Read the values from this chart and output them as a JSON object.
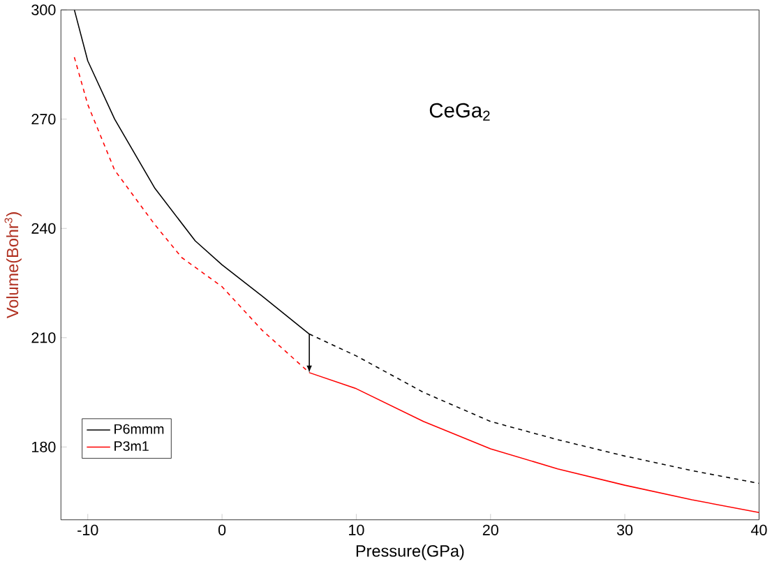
{
  "chart_data": {
    "type": "line",
    "xlabel": "Pressure(GPa)",
    "ylabel": "Volume(Bohr$^{3}$)",
    "annotations": [
      "CeGa$_{2}$"
    ],
    "xlim": [
      -12,
      40
    ],
    "ylim": [
      160,
      300
    ],
    "xticks": [
      -10,
      0,
      10,
      20,
      30,
      40
    ],
    "yticks": [
      180,
      210,
      240,
      270,
      300
    ],
    "grid": false,
    "legend": "bottom left",
    "marker": "none",
    "series": [
      {
        "name": "P6mmm",
        "color": "#000000",
        "line_style": "solid",
        "x": [
          -11,
          -10,
          -8,
          -5,
          -2,
          0,
          3,
          6.5
        ],
        "values": [
          300,
          286,
          270,
          251,
          236.6,
          230,
          221.4,
          211
        ]
      },
      {
        "name": "P3m1",
        "color": "#ff0000",
        "line_style": "solid",
        "x": [
          6.5,
          10,
          15,
          20,
          25,
          30,
          35,
          40
        ],
        "values": [
          200.4,
          196,
          187,
          179.5,
          174,
          169.5,
          165.5,
          162
        ]
      },
      {
        "color": "#000000",
        "line_style": "dashed",
        "x": [
          6.5,
          10,
          15,
          20,
          25,
          30,
          35,
          40
        ],
        "values": [
          211,
          205,
          195,
          187,
          182,
          177.5,
          173.5,
          170
        ]
      },
      {
        "color": "#ff0000",
        "line_style": "dashed",
        "x": [
          -11,
          -10,
          -8,
          -5,
          -3,
          0,
          3,
          6.5
        ],
        "values": [
          287,
          274,
          256,
          241,
          232,
          224,
          212,
          200.4
        ]
      }
    ]
  }
}
